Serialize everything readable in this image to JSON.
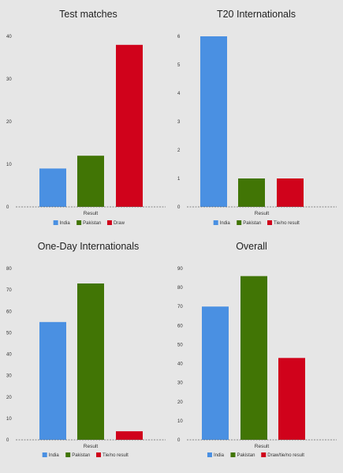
{
  "colors": {
    "india": "#4a90e2",
    "pakistan": "#417505",
    "red": "#d0021b"
  },
  "chart_data": [
    {
      "type": "bar",
      "title": "Test matches",
      "xlabel": "Result",
      "ylim": [
        0,
        40
      ],
      "yticks": [
        0,
        10,
        20,
        30,
        40
      ],
      "categories": [
        "India",
        "Pakistan",
        "Draw"
      ],
      "values": [
        9,
        12,
        38
      ],
      "series_colors": [
        "#4a90e2",
        "#417505",
        "#d0021b"
      ],
      "legend": [
        "India",
        "Pakistan",
        "Draw"
      ],
      "grid": false,
      "legend_position": "bottom"
    },
    {
      "type": "bar",
      "title": "T20 Internationals",
      "xlabel": "Result",
      "ylim": [
        0,
        6
      ],
      "yticks": [
        0,
        1,
        2,
        3,
        4,
        5,
        6
      ],
      "categories": [
        "India",
        "Pakistan",
        "Tie/no result"
      ],
      "values": [
        6,
        1,
        1
      ],
      "series_colors": [
        "#4a90e2",
        "#417505",
        "#d0021b"
      ],
      "legend": [
        "India",
        "Pakistan",
        "Tie/no result"
      ],
      "grid": false,
      "legend_position": "bottom"
    },
    {
      "type": "bar",
      "title": "One-Day Internationals",
      "xlabel": "Result",
      "ylim": [
        0,
        80
      ],
      "yticks": [
        0,
        10,
        20,
        30,
        40,
        50,
        60,
        70,
        80
      ],
      "categories": [
        "India",
        "Pakistan",
        "Tie/no result"
      ],
      "values": [
        55,
        73,
        4
      ],
      "series_colors": [
        "#4a90e2",
        "#417505",
        "#d0021b"
      ],
      "legend": [
        "India",
        "Pakistan",
        "Tie/no result"
      ],
      "grid": false,
      "legend_position": "bottom"
    },
    {
      "type": "bar",
      "title": "Overall",
      "xlabel": "Result",
      "ylim": [
        0,
        90
      ],
      "yticks": [
        0,
        10,
        20,
        30,
        40,
        50,
        60,
        70,
        80,
        90
      ],
      "categories": [
        "India",
        "Pakistan",
        "Draw/tie/no result"
      ],
      "values": [
        70,
        86,
        43
      ],
      "series_colors": [
        "#4a90e2",
        "#417505",
        "#d0021b"
      ],
      "legend": [
        "India",
        "Pakistan",
        "Draw/tie/no result"
      ],
      "grid": false,
      "legend_position": "bottom"
    }
  ]
}
